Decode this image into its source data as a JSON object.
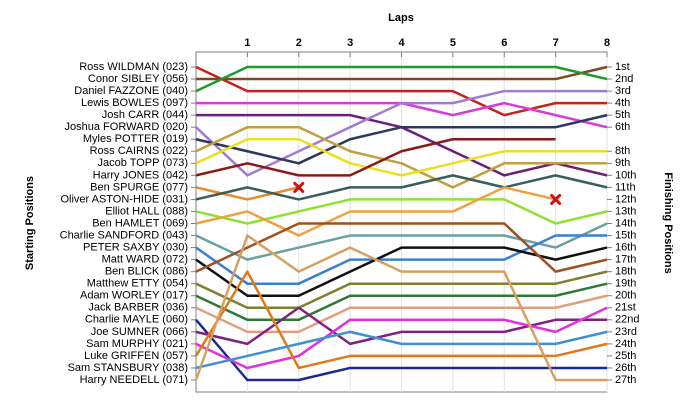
{
  "chart_data": {
    "type": "lap",
    "title": "Laps",
    "y_label": "Starting Positions",
    "y2_label": "Finishing Positions",
    "xlim": [
      0,
      8
    ],
    "xticks": [
      1,
      2,
      3,
      4,
      5,
      6,
      7,
      8
    ],
    "ylim": [
      1,
      27
    ],
    "y_reversed": true,
    "grid": true,
    "finish_labels": [
      "1st",
      "2nd",
      "3rd",
      "4th",
      "5th",
      "6th",
      null,
      "8th",
      "9th",
      "10th",
      "11th",
      "12th",
      "13th",
      "14th",
      "15th",
      "16th",
      "17th",
      "18th",
      "19th",
      "20th",
      "21st",
      "22nd",
      "23rd",
      "24th",
      "25th",
      "26th",
      "27th"
    ],
    "series": [
      {
        "name": "Ross WILDMAN (023)",
        "color": "#c8201c",
        "values": [
          1,
          3,
          3,
          3,
          3,
          3,
          5,
          4,
          4
        ]
      },
      {
        "name": "Conor SIBLEY (056)",
        "color": "#7a4a28",
        "values": [
          2,
          2,
          2,
          2,
          2,
          2,
          2,
          2,
          1
        ]
      },
      {
        "name": "Daniel FAZZONE (040)",
        "color": "#1e9a28",
        "values": [
          3,
          1,
          1,
          1,
          1,
          1,
          1,
          1,
          2
        ]
      },
      {
        "name": "Lewis BOWLES (097)",
        "color": "#d83cd8",
        "values": [
          4,
          4,
          4,
          4,
          4,
          5,
          4,
          5,
          6
        ]
      },
      {
        "name": "Josh CARR (044)",
        "color": "#6a1f78",
        "values": [
          5,
          5,
          5,
          5,
          6,
          8,
          10,
          9,
          10
        ]
      },
      {
        "name": "Joshua FORWARD (020)",
        "color": "#a07cd0",
        "values": [
          6,
          10,
          8,
          6,
          4,
          4,
          3,
          3,
          3
        ]
      },
      {
        "name": "Myles POTTER (019)",
        "color": "#2e3858",
        "values": [
          7,
          8,
          9,
          7,
          6,
          6,
          6,
          6,
          5
        ]
      },
      {
        "name": "Ross CAIRNS (022)",
        "color": "#c0a040",
        "values": [
          8,
          6,
          6,
          8,
          9,
          11,
          9,
          9,
          9
        ]
      },
      {
        "name": "Jacob TOPP (073)",
        "color": "#e8e020",
        "values": [
          9,
          7,
          7,
          9,
          10,
          9,
          8,
          8,
          8
        ]
      },
      {
        "name": "Harry JONES (042)",
        "color": "#8a1a1a",
        "values": [
          10,
          9,
          10,
          10,
          8,
          7,
          7,
          7,
          null
        ]
      },
      {
        "name": "Ben SPURGE (077)",
        "color": "#e88a30",
        "values": [
          11,
          12,
          11,
          null,
          null,
          null,
          null,
          null,
          null
        ],
        "retired_lap": 2
      },
      {
        "name": "Oliver ASTON-HIDE (031)",
        "color": "#3a5e5e",
        "values": [
          12,
          11,
          12,
          11,
          11,
          10,
          11,
          10,
          11
        ]
      },
      {
        "name": "Elliot HALL (088)",
        "color": "#90e030",
        "values": [
          13,
          14,
          13,
          12,
          12,
          12,
          12,
          14,
          13
        ]
      },
      {
        "name": "Ben HAMLET (069)",
        "color": "#f0a040",
        "values": [
          14,
          13,
          15,
          13,
          13,
          13,
          11,
          12,
          null
        ],
        "retired_lap": 7
      },
      {
        "name": "Charlie SANDFORD (043)",
        "color": "#6aa0a0",
        "values": [
          15,
          17,
          16,
          15,
          15,
          15,
          15,
          16,
          14
        ]
      },
      {
        "name": "PETER SAXBY (030)",
        "color": "#3a80d0",
        "values": [
          16,
          19,
          19,
          17,
          17,
          17,
          17,
          15,
          15
        ]
      },
      {
        "name": "Matt WARD (072)",
        "color": "#101010",
        "values": [
          17,
          20,
          20,
          18,
          16,
          16,
          16,
          17,
          16
        ]
      },
      {
        "name": "Ben BLICK (086)",
        "color": "#a05020",
        "values": [
          18,
          16,
          14,
          14,
          14,
          14,
          14,
          18,
          17
        ]
      },
      {
        "name": "Matthew ETTY (054)",
        "color": "#808030",
        "values": [
          19,
          21,
          21,
          19,
          19,
          19,
          19,
          19,
          18
        ]
      },
      {
        "name": "Adam WORLEY (017)",
        "color": "#2f7a3a",
        "values": [
          20,
          22,
          22,
          20,
          20,
          20,
          20,
          20,
          19
        ]
      },
      {
        "name": "Jack BARBER (036)",
        "color": "#e0a080",
        "values": [
          21,
          23,
          23,
          21,
          21,
          21,
          21,
          21,
          20
        ]
      },
      {
        "name": "Charlie MAYLE (060)",
        "color": "#1c2a8a",
        "values": [
          22,
          27,
          27,
          26,
          26,
          26,
          26,
          26,
          26
        ]
      },
      {
        "name": "Joe SUMNER (066)",
        "color": "#802080",
        "values": [
          23,
          24,
          21,
          24,
          23,
          23,
          23,
          22,
          22
        ]
      },
      {
        "name": "Sam MURPHY (021)",
        "color": "#e030e0",
        "values": [
          24,
          26,
          25,
          22,
          22,
          22,
          22,
          23,
          21
        ]
      },
      {
        "name": "Luke GRIFFEN (057)",
        "color": "#e07a18",
        "values": [
          25,
          18,
          26,
          25,
          25,
          25,
          25,
          25,
          24
        ]
      },
      {
        "name": "Sam STANSBURY (038)",
        "color": "#4090d0",
        "values": [
          26,
          25,
          24,
          23,
          24,
          24,
          24,
          24,
          23
        ]
      },
      {
        "name": "Harry NEEDELL (071)",
        "color": "#d8a060",
        "values": [
          27,
          15,
          18,
          16,
          18,
          18,
          18,
          27,
          27
        ]
      }
    ]
  }
}
